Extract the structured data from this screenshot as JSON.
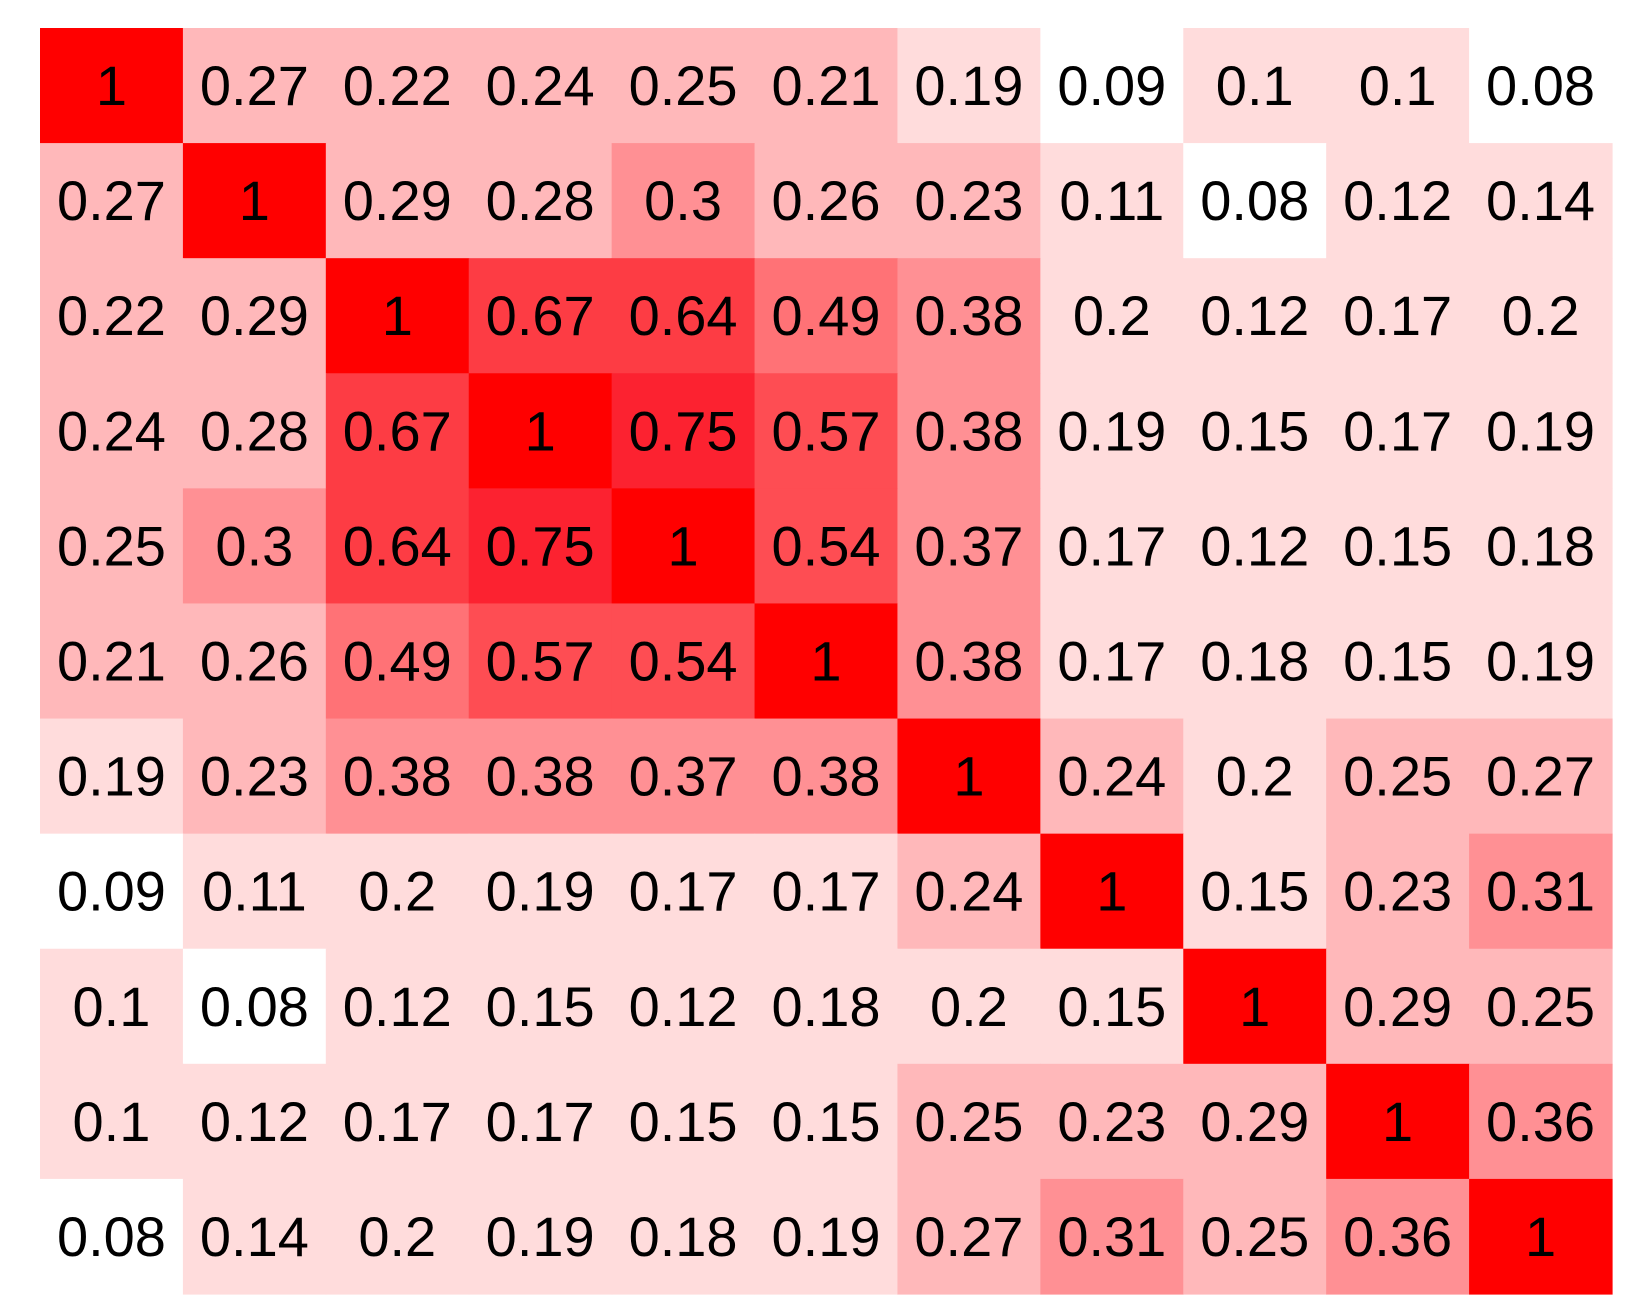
{
  "chart_data": {
    "type": "heatmap",
    "title": "",
    "xlabel": "",
    "ylabel": "",
    "legend": "none",
    "grid": false,
    "color_scale": {
      "low": "#ffffff",
      "high": "#ff0000",
      "binned": true,
      "bins": [
        {
          "max": 0.09,
          "color": "#ffffff"
        },
        {
          "max": 0.2,
          "color": "#ffdcdc"
        },
        {
          "max": 0.29,
          "color": "#ffb8ba"
        },
        {
          "max": 0.38,
          "color": "#ff9094"
        },
        {
          "max": 0.49,
          "color": "#ff7276"
        },
        {
          "max": 0.57,
          "color": "#fe4d53"
        },
        {
          "max": 0.67,
          "color": "#fd3c44"
        },
        {
          "max": 0.75,
          "color": "#fc2230"
        },
        {
          "max": 1.0,
          "color": "#ff0000"
        }
      ]
    },
    "matrix": [
      [
        1,
        0.27,
        0.22,
        0.24,
        0.25,
        0.21,
        0.19,
        0.09,
        0.1,
        0.1,
        0.08
      ],
      [
        0.27,
        1,
        0.29,
        0.28,
        0.3,
        0.26,
        0.23,
        0.11,
        0.08,
        0.12,
        0.14
      ],
      [
        0.22,
        0.29,
        1,
        0.67,
        0.64,
        0.49,
        0.38,
        0.2,
        0.12,
        0.17,
        0.2
      ],
      [
        0.24,
        0.28,
        0.67,
        1,
        0.75,
        0.57,
        0.38,
        0.19,
        0.15,
        0.17,
        0.19
      ],
      [
        0.25,
        0.3,
        0.64,
        0.75,
        1,
        0.54,
        0.37,
        0.17,
        0.12,
        0.15,
        0.18
      ],
      [
        0.21,
        0.26,
        0.49,
        0.57,
        0.54,
        1,
        0.38,
        0.17,
        0.18,
        0.15,
        0.19
      ],
      [
        0.19,
        0.23,
        0.38,
        0.38,
        0.37,
        0.38,
        1,
        0.24,
        0.2,
        0.25,
        0.27
      ],
      [
        0.09,
        0.11,
        0.2,
        0.19,
        0.17,
        0.17,
        0.24,
        1,
        0.15,
        0.23,
        0.31
      ],
      [
        0.1,
        0.08,
        0.12,
        0.15,
        0.12,
        0.18,
        0.2,
        0.15,
        1,
        0.29,
        0.25
      ],
      [
        0.1,
        0.12,
        0.17,
        0.17,
        0.15,
        0.15,
        0.25,
        0.23,
        0.29,
        1,
        0.36
      ],
      [
        0.08,
        0.14,
        0.2,
        0.19,
        0.18,
        0.19,
        0.27,
        0.31,
        0.25,
        0.36,
        1
      ]
    ]
  }
}
